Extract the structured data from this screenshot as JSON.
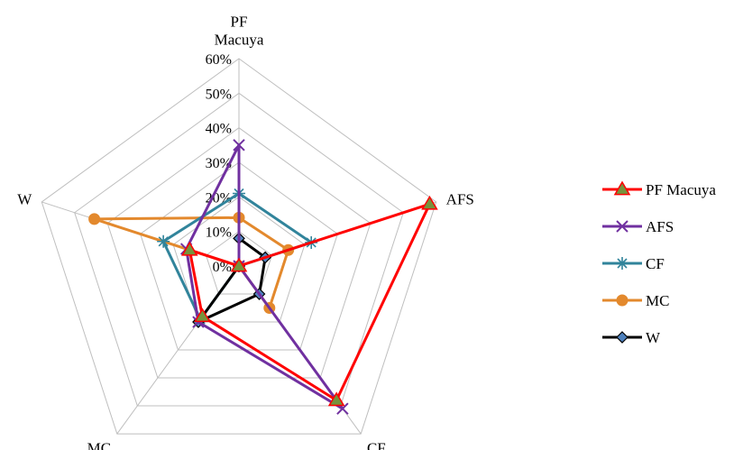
{
  "chart_data": {
    "type": "radar",
    "categories": [
      "PF\nMacuya",
      "AFS",
      "CF",
      "MC",
      "W"
    ],
    "rlim": [
      0,
      60
    ],
    "ticks": [
      "0%",
      "10%",
      "20%",
      "30%",
      "40%",
      "50%",
      "60%"
    ],
    "tick_values": [
      0,
      10,
      20,
      30,
      40,
      50,
      60
    ],
    "grid": true,
    "legend_position": "right",
    "series": [
      {
        "name": "PF Macuya",
        "values": [
          0,
          58,
          48,
          18,
          15
        ],
        "color": "#ff0000",
        "marker": "triangle",
        "marker_fill": "#76923c"
      },
      {
        "name": "AFS",
        "values": [
          35,
          0,
          51,
          20,
          16
        ],
        "color": "#7030a0",
        "marker": "x",
        "marker_fill": "#7030a0"
      },
      {
        "name": "CF",
        "values": [
          21,
          22,
          0,
          19,
          23
        ],
        "color": "#31849b",
        "marker": "star",
        "marker_fill": "#31849b"
      },
      {
        "name": "MC",
        "values": [
          14,
          15,
          15,
          0,
          44
        ],
        "color": "#e3892d",
        "marker": "circle",
        "marker_fill": "#e3892d"
      },
      {
        "name": "W",
        "values": [
          8,
          8,
          10,
          20,
          0
        ],
        "color": "#000000",
        "marker": "diamond",
        "marker_fill": "#4f81bd"
      }
    ]
  }
}
